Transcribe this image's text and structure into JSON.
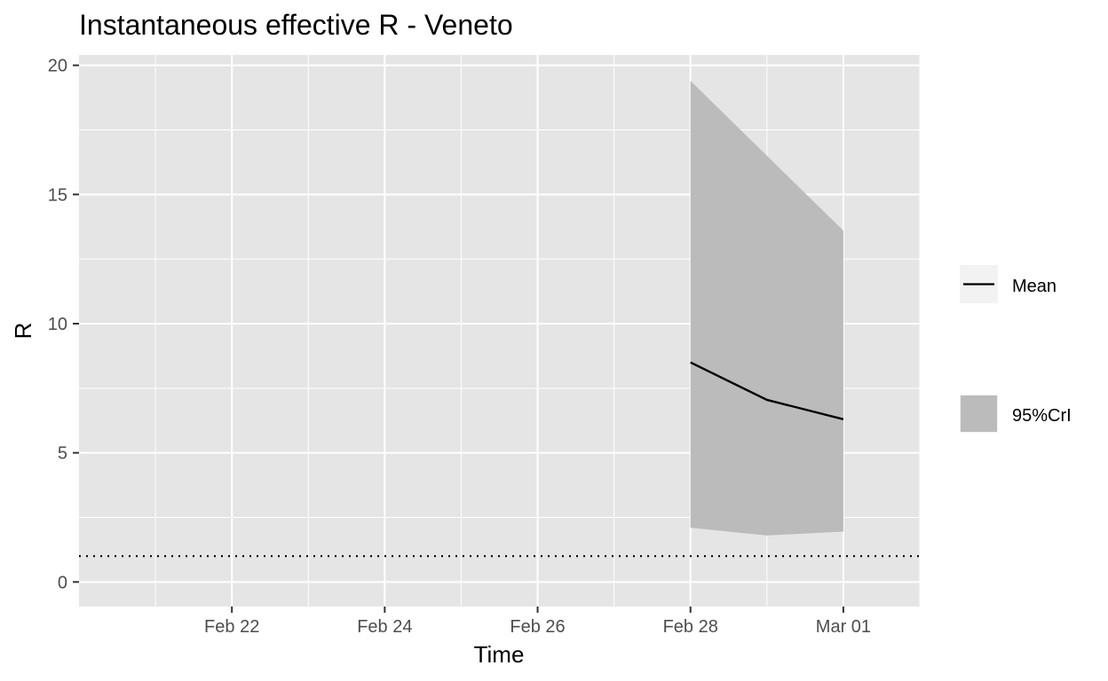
{
  "chart_data": {
    "type": "line",
    "title": "Instantaneous effective R -  Veneto",
    "xlabel": "Time",
    "ylabel": "R",
    "x_ticks": [
      {
        "date": "2020-02-22",
        "label": "Feb 22"
      },
      {
        "date": "2020-02-24",
        "label": "Feb 24"
      },
      {
        "date": "2020-02-26",
        "label": "Feb 26"
      },
      {
        "date": "2020-02-28",
        "label": "Feb 28"
      },
      {
        "date": "2020-03-01",
        "label": "Mar 01"
      }
    ],
    "xlim": [
      "2020-02-20",
      "2020-03-02"
    ],
    "y_ticks": [
      0,
      5,
      10,
      15,
      20
    ],
    "ylim": [
      -0.95,
      20.4
    ],
    "series": [
      {
        "name": "Mean",
        "type": "line",
        "color": "#000000",
        "x": [
          "2020-02-28",
          "2020-02-29",
          "2020-03-01"
        ],
        "y": [
          8.5,
          7.05,
          6.3
        ]
      },
      {
        "name": "95%CrI",
        "type": "band",
        "color": "#bbbbbb",
        "x": [
          "2020-02-28",
          "2020-02-29",
          "2020-03-01"
        ],
        "lower": [
          2.1,
          1.8,
          1.95
        ],
        "upper": [
          19.4,
          16.5,
          13.6
        ]
      }
    ],
    "reference_line": {
      "y": 1,
      "style": "dotted"
    },
    "grid": true,
    "panel_background": "#e5e5e5",
    "legend_position": "right"
  }
}
